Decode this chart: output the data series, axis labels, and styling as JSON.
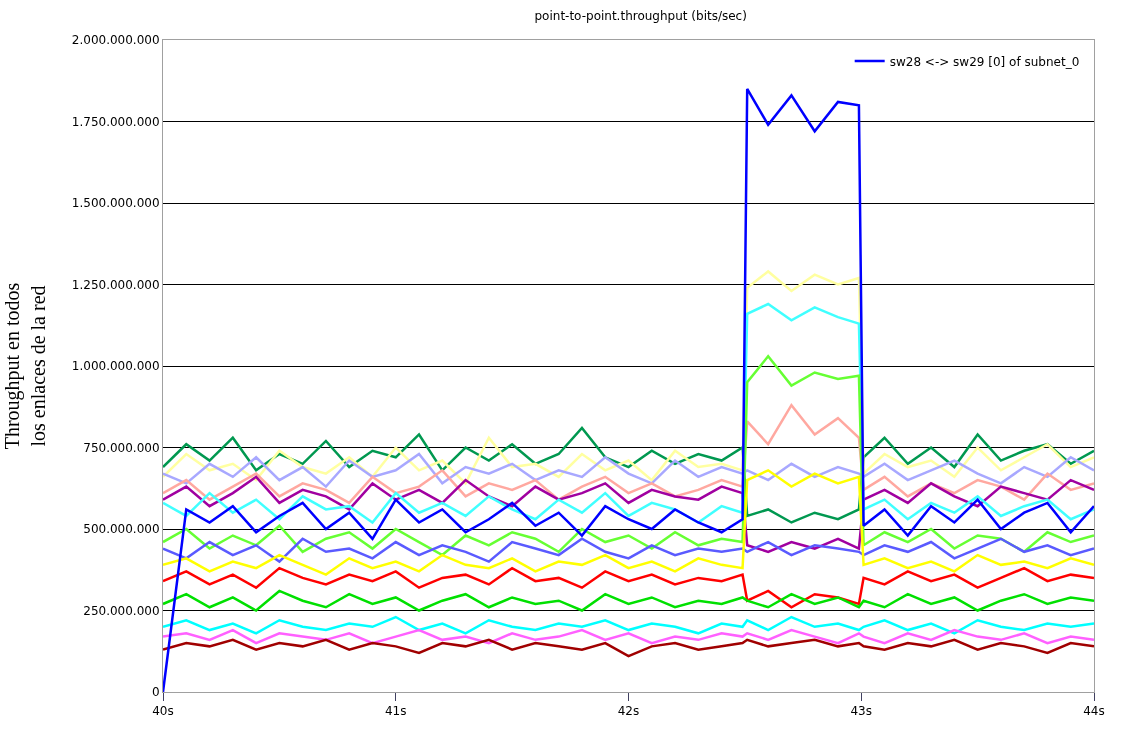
{
  "chart_data": {
    "type": "line",
    "title": "point-to-point.throughput (bits/sec)",
    "ylabel": "Throughput en todos\nlos enlaces de la red",
    "x": [
      40.0,
      40.1,
      40.2,
      40.3,
      40.4,
      40.5,
      40.6,
      40.7,
      40.8,
      40.9,
      41.0,
      41.1,
      41.2,
      41.3,
      41.4,
      41.5,
      41.6,
      41.7,
      41.8,
      41.9,
      42.0,
      42.1,
      42.2,
      42.3,
      42.4,
      42.49,
      42.51,
      42.6,
      42.7,
      42.8,
      42.9,
      42.99,
      43.01,
      43.1,
      43.2,
      43.3,
      43.4,
      43.5,
      43.6,
      43.7,
      43.8,
      43.9,
      44.0
    ],
    "xlim": [
      40,
      44
    ],
    "xticks": [
      {
        "value": 40,
        "label": "40s"
      },
      {
        "value": 41,
        "label": "41s"
      },
      {
        "value": 42,
        "label": "42s"
      },
      {
        "value": 43,
        "label": "43s"
      },
      {
        "value": 44,
        "label": "44s"
      }
    ],
    "ylim": [
      0,
      2000000000
    ],
    "yticks": [
      0,
      {
        "value": 250000000,
        "label": "250.000.000"
      },
      {
        "value": 500000000,
        "label": "500.000.000"
      },
      {
        "value": 750000000,
        "label": "750.000.000"
      },
      {
        "value": 1000000000,
        "label": "1.000.000.000"
      },
      {
        "value": 1250000000,
        "label": "1.250.000.000"
      },
      {
        "value": 1500000000,
        "label": "1.500.000.000"
      },
      {
        "value": 1750000000,
        "label": "1.750.000.000"
      },
      {
        "value": 2000000000,
        "label": "2.000.000.000"
      }
    ],
    "grid": "y",
    "legend": "top right",
    "marker": "none",
    "line_style": "solid",
    "series": [
      {
        "color": "#009850",
        "values": [
          690000000.0,
          760000000.0,
          710000000.0,
          780000000.0,
          680000000.0,
          730000000.0,
          700000000.0,
          770000000.0,
          690000000.0,
          740000000.0,
          720000000.0,
          790000000.0,
          680000000.0,
          750000000.0,
          710000000.0,
          760000000.0,
          700000000.0,
          730000000.0,
          810000000.0,
          720000000.0,
          690000000.0,
          740000000.0,
          700000000.0,
          730000000.0,
          710000000.0,
          750000000.0,
          540000000.0,
          560000000.0,
          520000000.0,
          550000000.0,
          530000000.0,
          560000000.0,
          720000000.0,
          780000000.0,
          700000000.0,
          750000000.0,
          690000000.0,
          790000000.0,
          710000000.0,
          740000000.0,
          760000000.0,
          700000000.0,
          740000000.0
        ]
      },
      {
        "color": "#ffffa0",
        "values": [
          660000000.0,
          730000000.0,
          680000000.0,
          700000000.0,
          650000000.0,
          740000000.0,
          690000000.0,
          670000000.0,
          720000000.0,
          660000000.0,
          750000000.0,
          680000000.0,
          710000000.0,
          640000000.0,
          780000000.0,
          690000000.0,
          700000000.0,
          660000000.0,
          730000000.0,
          680000000.0,
          710000000.0,
          650000000.0,
          740000000.0,
          690000000.0,
          700000000.0,
          680000000.0,
          1240000000.0,
          1290000000.0,
          1230000000.0,
          1280000000.0,
          1250000000.0,
          1270000000.0,
          670000000.0,
          730000000.0,
          690000000.0,
          710000000.0,
          660000000.0,
          750000000.0,
          680000000.0,
          720000000.0,
          760000000.0,
          690000000.0,
          720000000.0
        ]
      },
      {
        "color": "#a8a8ff",
        "values": [
          670000000.0,
          640000000.0,
          700000000.0,
          660000000.0,
          720000000.0,
          650000000.0,
          690000000.0,
          630000000.0,
          710000000.0,
          660000000.0,
          680000000.0,
          730000000.0,
          640000000.0,
          690000000.0,
          670000000.0,
          700000000.0,
          650000000.0,
          680000000.0,
          660000000.0,
          720000000.0,
          670000000.0,
          640000000.0,
          710000000.0,
          660000000.0,
          690000000.0,
          670000000.0,
          680000000.0,
          650000000.0,
          700000000.0,
          660000000.0,
          690000000.0,
          670000000.0,
          660000000.0,
          700000000.0,
          650000000.0,
          680000000.0,
          710000000.0,
          670000000.0,
          640000000.0,
          690000000.0,
          660000000.0,
          720000000.0,
          680000000.0
        ]
      },
      {
        "color": "#ffa8a0",
        "values": [
          610000000.0,
          650000000.0,
          590000000.0,
          630000000.0,
          670000000.0,
          600000000.0,
          640000000.0,
          620000000.0,
          580000000.0,
          660000000.0,
          610000000.0,
          630000000.0,
          680000000.0,
          600000000.0,
          640000000.0,
          620000000.0,
          650000000.0,
          590000000.0,
          630000000.0,
          660000000.0,
          610000000.0,
          640000000.0,
          600000000.0,
          620000000.0,
          650000000.0,
          630000000.0,
          830000000.0,
          760000000.0,
          880000000.0,
          790000000.0,
          840000000.0,
          780000000.0,
          620000000.0,
          660000000.0,
          600000000.0,
          640000000.0,
          610000000.0,
          650000000.0,
          630000000.0,
          590000000.0,
          670000000.0,
          620000000.0,
          640000000.0
        ]
      },
      {
        "color": "#a000a0",
        "values": [
          590000000.0,
          630000000.0,
          570000000.0,
          610000000.0,
          660000000.0,
          580000000.0,
          620000000.0,
          600000000.0,
          560000000.0,
          640000000.0,
          590000000.0,
          620000000.0,
          580000000.0,
          650000000.0,
          600000000.0,
          570000000.0,
          630000000.0,
          590000000.0,
          610000000.0,
          640000000.0,
          580000000.0,
          620000000.0,
          600000000.0,
          590000000.0,
          630000000.0,
          610000000.0,
          450000000.0,
          430000000.0,
          460000000.0,
          440000000.0,
          470000000.0,
          440000000.0,
          590000000.0,
          620000000.0,
          580000000.0,
          640000000.0,
          600000000.0,
          570000000.0,
          630000000.0,
          610000000.0,
          590000000.0,
          650000000.0,
          620000000.0
        ]
      },
      {
        "color": "#40ffff",
        "values": [
          580000000.0,
          540000000.0,
          610000000.0,
          550000000.0,
          590000000.0,
          530000000.0,
          600000000.0,
          560000000.0,
          570000000.0,
          520000000.0,
          610000000.0,
          550000000.0,
          580000000.0,
          540000000.0,
          600000000.0,
          560000000.0,
          530000000.0,
          590000000.0,
          550000000.0,
          610000000.0,
          540000000.0,
          580000000.0,
          560000000.0,
          520000000.0,
          570000000.0,
          550000000.0,
          1160000000.0,
          1190000000.0,
          1140000000.0,
          1180000000.0,
          1150000000.0,
          1130000000.0,
          560000000.0,
          590000000.0,
          530000000.0,
          580000000.0,
          550000000.0,
          600000000.0,
          540000000.0,
          570000000.0,
          590000000.0,
          530000000.0,
          560000000.0
        ]
      },
      {
        "color": "#66ff33",
        "values": [
          460000000.0,
          500000000.0,
          440000000.0,
          480000000.0,
          450000000.0,
          510000000.0,
          430000000.0,
          470000000.0,
          490000000.0,
          440000000.0,
          500000000.0,
          460000000.0,
          420000000.0,
          480000000.0,
          450000000.0,
          490000000.0,
          470000000.0,
          430000000.0,
          500000000.0,
          460000000.0,
          480000000.0,
          440000000.0,
          490000000.0,
          450000000.0,
          470000000.0,
          460000000.0,
          950000000.0,
          1030000000.0,
          940000000.0,
          980000000.0,
          960000000.0,
          970000000.0,
          450000000.0,
          490000000.0,
          460000000.0,
          500000000.0,
          440000000.0,
          480000000.0,
          470000000.0,
          430000000.0,
          490000000.0,
          460000000.0,
          480000000.0
        ]
      },
      {
        "color": "#5a5aff",
        "values": [
          440000000.0,
          410000000.0,
          460000000.0,
          420000000.0,
          450000000.0,
          400000000.0,
          470000000.0,
          430000000.0,
          440000000.0,
          410000000.0,
          460000000.0,
          420000000.0,
          450000000.0,
          430000000.0,
          400000000.0,
          460000000.0,
          440000000.0,
          420000000.0,
          470000000.0,
          430000000.0,
          410000000.0,
          450000000.0,
          420000000.0,
          440000000.0,
          430000000.0,
          440000000.0,
          430000000.0,
          460000000.0,
          420000000.0,
          450000000.0,
          440000000.0,
          430000000.0,
          420000000.0,
          450000000.0,
          430000000.0,
          460000000.0,
          410000000.0,
          440000000.0,
          470000000.0,
          430000000.0,
          450000000.0,
          420000000.0,
          440000000.0
        ]
      },
      {
        "color": "#ffff00",
        "values": [
          390000000.0,
          410000000.0,
          370000000.0,
          400000000.0,
          380000000.0,
          420000000.0,
          390000000.0,
          360000000.0,
          410000000.0,
          380000000.0,
          400000000.0,
          370000000.0,
          420000000.0,
          390000000.0,
          380000000.0,
          410000000.0,
          370000000.0,
          400000000.0,
          390000000.0,
          420000000.0,
          380000000.0,
          400000000.0,
          370000000.0,
          410000000.0,
          390000000.0,
          380000000.0,
          650000000.0,
          680000000.0,
          630000000.0,
          670000000.0,
          640000000.0,
          660000000.0,
          390000000.0,
          410000000.0,
          380000000.0,
          400000000.0,
          370000000.0,
          420000000.0,
          390000000.0,
          400000000.0,
          380000000.0,
          410000000.0,
          390000000.0
        ]
      },
      {
        "color": "#ff0000",
        "values": [
          340000000.0,
          370000000.0,
          330000000.0,
          360000000.0,
          320000000.0,
          380000000.0,
          350000000.0,
          330000000.0,
          360000000.0,
          340000000.0,
          370000000.0,
          320000000.0,
          350000000.0,
          360000000.0,
          330000000.0,
          380000000.0,
          340000000.0,
          350000000.0,
          320000000.0,
          370000000.0,
          340000000.0,
          360000000.0,
          330000000.0,
          350000000.0,
          340000000.0,
          360000000.0,
          280000000.0,
          310000000.0,
          260000000.0,
          300000000.0,
          290000000.0,
          270000000.0,
          350000000.0,
          330000000.0,
          370000000.0,
          340000000.0,
          360000000.0,
          320000000.0,
          350000000.0,
          380000000.0,
          340000000.0,
          360000000.0,
          350000000.0
        ]
      },
      {
        "color": "#00e000",
        "values": [
          270000000.0,
          300000000.0,
          260000000.0,
          290000000.0,
          250000000.0,
          310000000.0,
          280000000.0,
          260000000.0,
          300000000.0,
          270000000.0,
          290000000.0,
          250000000.0,
          280000000.0,
          300000000.0,
          260000000.0,
          290000000.0,
          270000000.0,
          280000000.0,
          250000000.0,
          300000000.0,
          270000000.0,
          290000000.0,
          260000000.0,
          280000000.0,
          270000000.0,
          290000000.0,
          280000000.0,
          260000000.0,
          300000000.0,
          270000000.0,
          290000000.0,
          260000000.0,
          280000000.0,
          260000000.0,
          300000000.0,
          270000000.0,
          290000000.0,
          250000000.0,
          280000000.0,
          300000000.0,
          270000000.0,
          290000000.0,
          280000000.0
        ]
      },
      {
        "color": "#00ffff",
        "values": [
          200000000.0,
          220000000.0,
          190000000.0,
          210000000.0,
          180000000.0,
          220000000.0,
          200000000.0,
          190000000.0,
          210000000.0,
          200000000.0,
          230000000.0,
          190000000.0,
          210000000.0,
          180000000.0,
          220000000.0,
          200000000.0,
          190000000.0,
          210000000.0,
          200000000.0,
          220000000.0,
          190000000.0,
          210000000.0,
          200000000.0,
          180000000.0,
          210000000.0,
          200000000.0,
          220000000.0,
          190000000.0,
          230000000.0,
          200000000.0,
          210000000.0,
          190000000.0,
          200000000.0,
          220000000.0,
          190000000.0,
          210000000.0,
          180000000.0,
          220000000.0,
          200000000.0,
          190000000.0,
          210000000.0,
          200000000.0,
          210000000.0
        ]
      },
      {
        "color": "#ff60ff",
        "values": [
          170000000.0,
          180000000.0,
          160000000.0,
          190000000.0,
          150000000.0,
          180000000.0,
          170000000.0,
          160000000.0,
          180000000.0,
          150000000.0,
          170000000.0,
          190000000.0,
          160000000.0,
          170000000.0,
          150000000.0,
          180000000.0,
          160000000.0,
          170000000.0,
          190000000.0,
          160000000.0,
          180000000.0,
          150000000.0,
          170000000.0,
          160000000.0,
          180000000.0,
          170000000.0,
          180000000.0,
          160000000.0,
          190000000.0,
          170000000.0,
          150000000.0,
          180000000.0,
          170000000.0,
          150000000.0,
          180000000.0,
          160000000.0,
          190000000.0,
          170000000.0,
          160000000.0,
          180000000.0,
          150000000.0,
          170000000.0,
          160000000.0
        ]
      },
      {
        "color": "#a00000",
        "values": [
          130000000.0,
          150000000.0,
          140000000.0,
          160000000.0,
          130000000.0,
          150000000.0,
          140000000.0,
          160000000.0,
          130000000.0,
          150000000.0,
          140000000.0,
          120000000.0,
          150000000.0,
          140000000.0,
          160000000.0,
          130000000.0,
          150000000.0,
          140000000.0,
          130000000.0,
          150000000.0,
          110000000.0,
          140000000.0,
          150000000.0,
          130000000.0,
          140000000.0,
          150000000.0,
          160000000.0,
          140000000.0,
          150000000.0,
          160000000.0,
          140000000.0,
          150000000.0,
          140000000.0,
          130000000.0,
          150000000.0,
          140000000.0,
          160000000.0,
          130000000.0,
          150000000.0,
          140000000.0,
          120000000.0,
          150000000.0,
          140000000.0
        ]
      },
      {
        "name": "sw28 <-> sw29 [0] of subnet_0",
        "color": "#0000ff",
        "values": [
          0,
          560000000.0,
          520000000.0,
          570000000.0,
          490000000.0,
          540000000.0,
          580000000.0,
          500000000.0,
          550000000.0,
          470000000.0,
          590000000.0,
          520000000.0,
          560000000.0,
          490000000.0,
          530000000.0,
          580000000.0,
          510000000.0,
          550000000.0,
          480000000.0,
          570000000.0,
          530000000.0,
          500000000.0,
          560000000.0,
          520000000.0,
          490000000.0,
          530000000.0,
          1850000000.0,
          1740000000.0,
          1830000000.0,
          1720000000.0,
          1810000000.0,
          1800000000.0,
          510000000.0,
          560000000.0,
          480000000.0,
          570000000.0,
          520000000.0,
          590000000.0,
          500000000.0,
          550000000.0,
          580000000.0,
          490000000.0,
          570000000.0
        ]
      }
    ]
  }
}
